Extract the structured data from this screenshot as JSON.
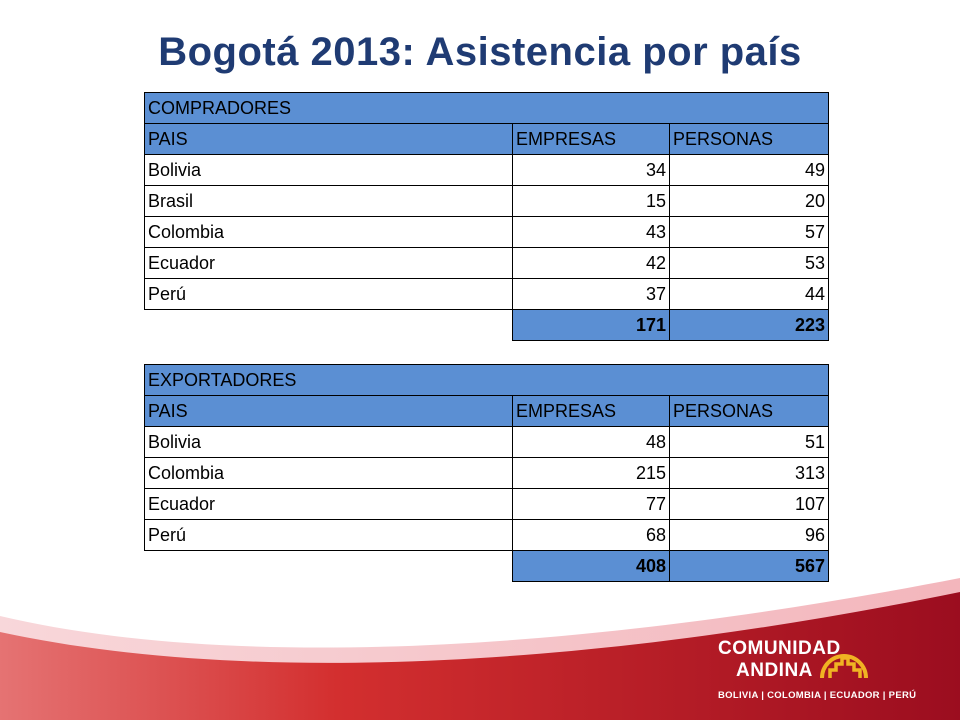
{
  "title": "Bogotá 2013: Asistencia por país",
  "compradores": {
    "section": "COMPRADORES",
    "headers": [
      "PAIS",
      "EMPRESAS",
      "PERSONAS"
    ],
    "rows": [
      {
        "pais": "Bolivia",
        "empresas": "34",
        "personas": "49"
      },
      {
        "pais": "Brasil",
        "empresas": "15",
        "personas": "20"
      },
      {
        "pais": "Colombia",
        "empresas": "43",
        "personas": "57"
      },
      {
        "pais": "Ecuador",
        "empresas": "42",
        "personas": "53"
      },
      {
        "pais": "Perú",
        "empresas": "37",
        "personas": "44"
      }
    ],
    "total": {
      "empresas": "171",
      "personas": "223"
    }
  },
  "exportadores": {
    "section": "EXPORTADORES",
    "headers": [
      "PAIS",
      "EMPRESAS",
      "PERSONAS"
    ],
    "rows": [
      {
        "pais": "Bolivia",
        "empresas": "48",
        "personas": "51"
      },
      {
        "pais": "Colombia",
        "empresas": "215",
        "personas": "313"
      },
      {
        "pais": "Ecuador",
        "empresas": "77",
        "personas": "107"
      },
      {
        "pais": "Perú",
        "empresas": "68",
        "personas": "96"
      }
    ],
    "total": {
      "empresas": "408",
      "personas": "567"
    }
  },
  "logo": {
    "line1": "COMUNIDAD",
    "line2": "ANDINA",
    "members": "BOLIVIA | COLOMBIA | ECUADOR | PERÚ"
  },
  "colors": {
    "title": "#1f3b73",
    "header_fill": "#5b8fd3",
    "footer_red": "#c8102e",
    "logo_gold": "#f0b323"
  }
}
